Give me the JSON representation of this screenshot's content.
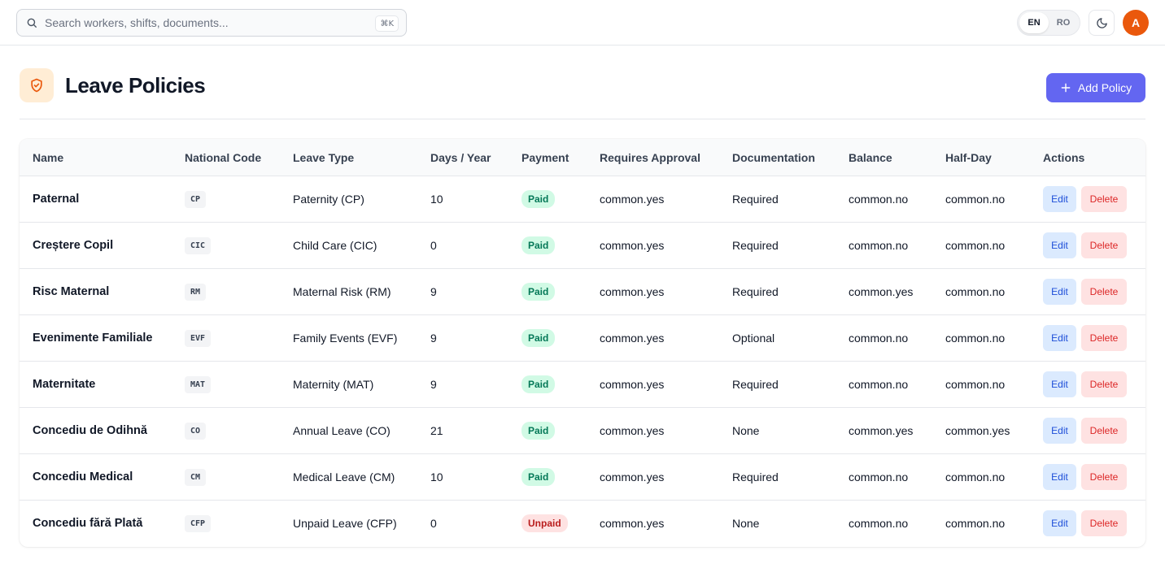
{
  "search": {
    "placeholder": "Search workers, shifts, documents...",
    "shortcut": "⌘K"
  },
  "language": {
    "options": [
      "EN",
      "RO"
    ],
    "active": "EN"
  },
  "user": {
    "avatar_initial": "A"
  },
  "page": {
    "title": "Leave Policies",
    "add_button_label": "Add Policy"
  },
  "table": {
    "columns": [
      "Name",
      "National Code",
      "Leave Type",
      "Days / Year",
      "Payment",
      "Requires Approval",
      "Documentation",
      "Balance",
      "Half-Day",
      "Actions"
    ],
    "rows": [
      {
        "name": "Paternal",
        "code": "CP",
        "leave_type": "Paternity (CP)",
        "days": "10",
        "payment": "Paid",
        "approval": "common.yes",
        "documentation": "Required",
        "balance": "common.no",
        "half_day": "common.no"
      },
      {
        "name": "Creștere Copil",
        "code": "CIC",
        "leave_type": "Child Care (CIC)",
        "days": "0",
        "payment": "Paid",
        "approval": "common.yes",
        "documentation": "Required",
        "balance": "common.no",
        "half_day": "common.no"
      },
      {
        "name": "Risc Maternal",
        "code": "RM",
        "leave_type": "Maternal Risk (RM)",
        "days": "9",
        "payment": "Paid",
        "approval": "common.yes",
        "documentation": "Required",
        "balance": "common.yes",
        "half_day": "common.no"
      },
      {
        "name": "Evenimente Familiale",
        "code": "EVF",
        "leave_type": "Family Events (EVF)",
        "days": "9",
        "payment": "Paid",
        "approval": "common.yes",
        "documentation": "Optional",
        "balance": "common.no",
        "half_day": "common.no"
      },
      {
        "name": "Maternitate",
        "code": "MAT",
        "leave_type": "Maternity (MAT)",
        "days": "9",
        "payment": "Paid",
        "approval": "common.yes",
        "documentation": "Required",
        "balance": "common.no",
        "half_day": "common.no"
      },
      {
        "name": "Concediu de Odihnă",
        "code": "CO",
        "leave_type": "Annual Leave (CO)",
        "days": "21",
        "payment": "Paid",
        "approval": "common.yes",
        "documentation": "None",
        "balance": "common.yes",
        "half_day": "common.yes"
      },
      {
        "name": "Concediu Medical",
        "code": "CM",
        "leave_type": "Medical Leave (CM)",
        "days": "10",
        "payment": "Paid",
        "approval": "common.yes",
        "documentation": "Required",
        "balance": "common.no",
        "half_day": "common.no"
      },
      {
        "name": "Concediu fără Plată",
        "code": "CFP",
        "leave_type": "Unpaid Leave (CFP)",
        "days": "0",
        "payment": "Unpaid",
        "approval": "common.yes",
        "documentation": "None",
        "balance": "common.no",
        "half_day": "common.no"
      }
    ],
    "actions": {
      "edit_label": "Edit",
      "delete_label": "Delete"
    }
  },
  "colors": {
    "accent": "#6366f1",
    "avatar": "#ea580c",
    "page_icon_bg": "#ffedd5",
    "paid": "#047857",
    "unpaid": "#b91c1c"
  },
  "icons": {
    "search": "search-icon",
    "theme": "moon-icon",
    "page": "shield-check-icon",
    "add": "plus-icon"
  }
}
